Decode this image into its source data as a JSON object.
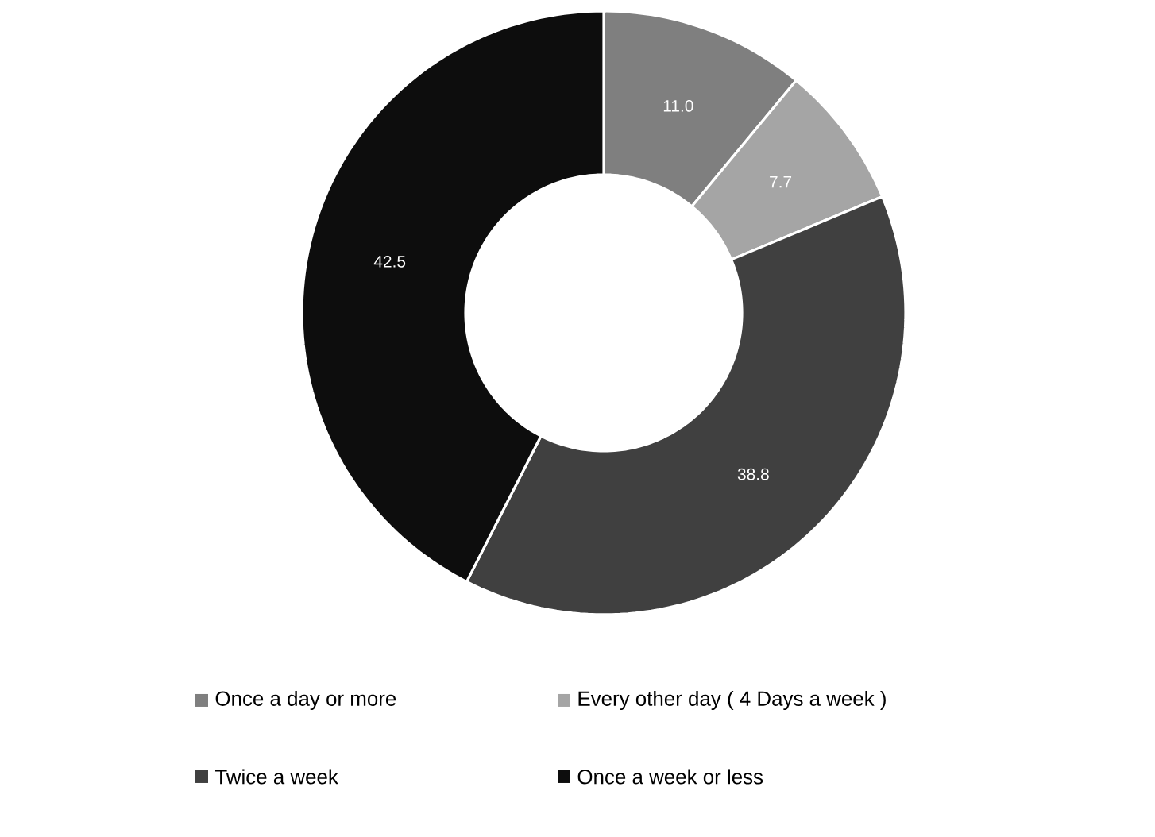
{
  "chart_data": {
    "type": "donut",
    "categories": [
      "Once a day or more",
      "Every other day   ( 4 Days a week )",
      "Twice a week",
      "Once a week or less"
    ],
    "values": [
      11.0,
      7.7,
      38.8,
      42.5
    ],
    "colors": [
      "#7f7f7f",
      "#a5a5a5",
      "#404040",
      "#0d0d0d"
    ],
    "value_labels": [
      "11.0",
      "7.7",
      "38.8",
      "42.5"
    ],
    "legend": "bottom"
  }
}
